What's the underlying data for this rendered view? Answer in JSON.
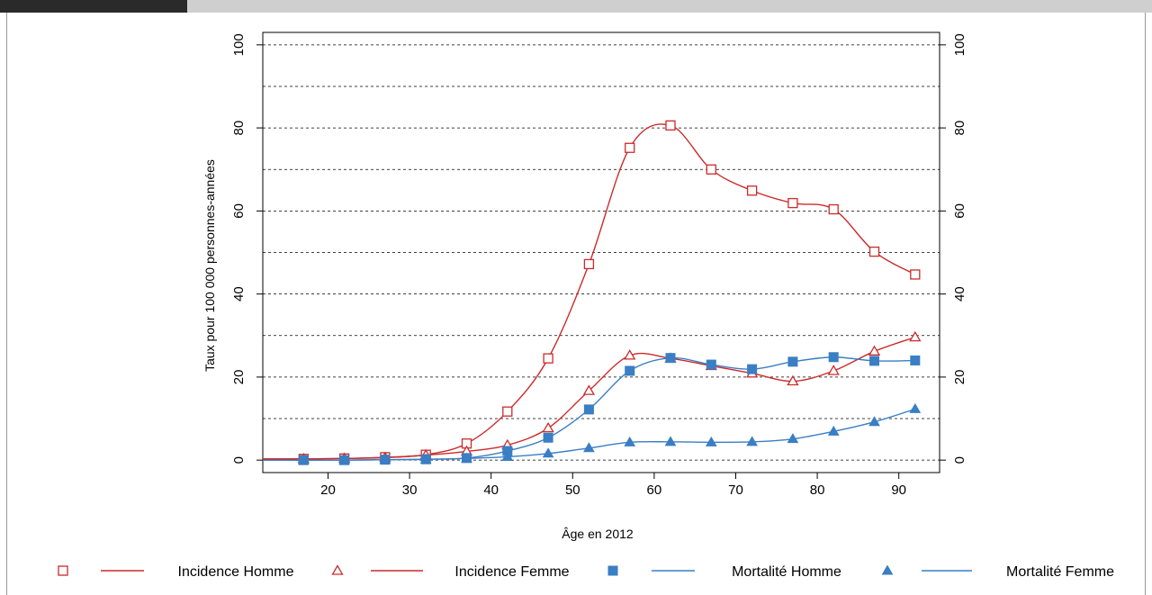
{
  "chart_data": {
    "type": "line",
    "xlabel": "Âge en 2012",
    "ylabel": "Taux pour 100 000 personnes-années",
    "xlim": [
      12,
      95
    ],
    "ylim": [
      -3,
      103
    ],
    "x_ticks": [
      20,
      30,
      40,
      50,
      60,
      70,
      80,
      90
    ],
    "y_ticks": [
      0,
      20,
      40,
      60,
      80,
      100
    ],
    "grid_y": [
      10,
      20,
      30,
      40,
      50,
      60,
      70,
      80,
      90,
      100
    ],
    "grid": "horizontal dashed",
    "legend_position": "bottom",
    "x": [
      17,
      22,
      27,
      32,
      37,
      42,
      47,
      52,
      57,
      62,
      67,
      72,
      77,
      82,
      87,
      92
    ],
    "series": [
      {
        "name": "Incidence Homme",
        "color": "#cc2a2a",
        "marker": "square-open",
        "values": [
          0.3,
          0.4,
          0.7,
          1.3,
          4.0,
          11.7,
          24.5,
          47.2,
          75.2,
          80.6,
          70.0,
          64.9,
          61.9,
          60.4,
          50.2,
          44.7
        ]
      },
      {
        "name": "Incidence Femme",
        "color": "#cc2a2a",
        "marker": "triangle-open",
        "values": [
          0.3,
          0.4,
          0.6,
          1.2,
          2.1,
          3.6,
          7.7,
          16.7,
          25.2,
          24.5,
          22.7,
          20.9,
          19.0,
          21.5,
          26.2,
          29.6
        ]
      },
      {
        "name": "Mortalité Homme",
        "color": "#3a7ec4",
        "marker": "square-filled",
        "values": [
          0.0,
          0.0,
          0.1,
          0.2,
          0.5,
          2.2,
          5.4,
          12.2,
          21.5,
          24.6,
          23.0,
          21.9,
          23.7,
          24.8,
          23.9,
          24.0
        ]
      },
      {
        "name": "Mortalité Femme",
        "color": "#3a7ec4",
        "marker": "triangle-filled",
        "values": [
          0.0,
          0.0,
          0.1,
          0.2,
          0.4,
          0.8,
          1.6,
          2.9,
          4.3,
          4.4,
          4.3,
          4.4,
          5.1,
          6.9,
          9.2,
          12.3
        ]
      }
    ]
  }
}
